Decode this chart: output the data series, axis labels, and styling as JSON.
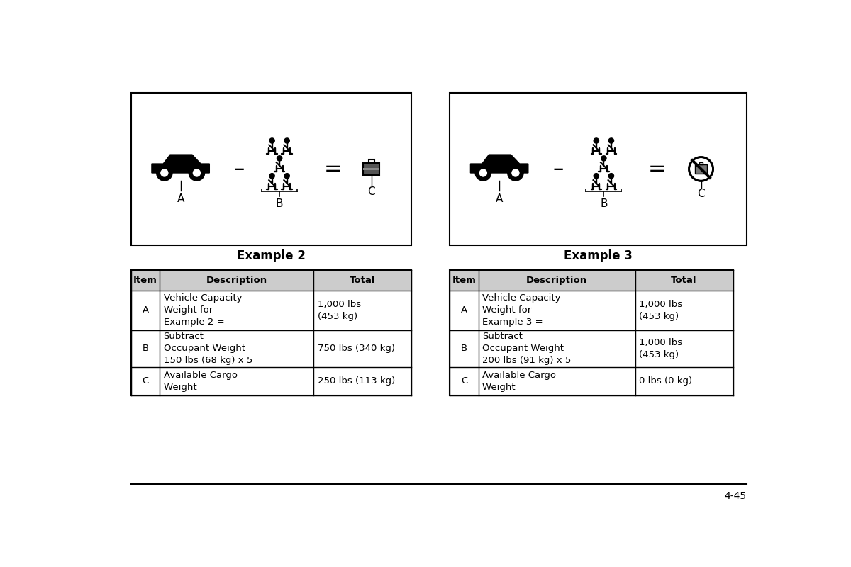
{
  "bg_color": "#ffffff",
  "page_number": "4-45",
  "example2_label": "Example 2",
  "example3_label": "Example 3",
  "table1": {
    "headers": [
      "Item",
      "Description",
      "Total"
    ],
    "rows": [
      [
        "A",
        "Vehicle Capacity\nWeight for\nExample 2 =",
        "1,000 lbs\n(453 kg)"
      ],
      [
        "B",
        "Subtract\nOccupant Weight\n150 lbs (68 kg) x 5 =",
        "750 lbs (340 kg)"
      ],
      [
        "C",
        "Available Cargo\nWeight =",
        "250 lbs (113 kg)"
      ]
    ]
  },
  "table2": {
    "headers": [
      "Item",
      "Description",
      "Total"
    ],
    "rows": [
      [
        "A",
        "Vehicle Capacity\nWeight for\nExample 3 =",
        "1,000 lbs\n(453 kg)"
      ],
      [
        "B",
        "Subtract\nOccupant Weight\n200 lbs (91 kg) x 5 =",
        "1,000 lbs\n(453 kg)"
      ],
      [
        "C",
        "Available Cargo\nWeight =",
        "0 lbs (0 kg)"
      ]
    ]
  }
}
